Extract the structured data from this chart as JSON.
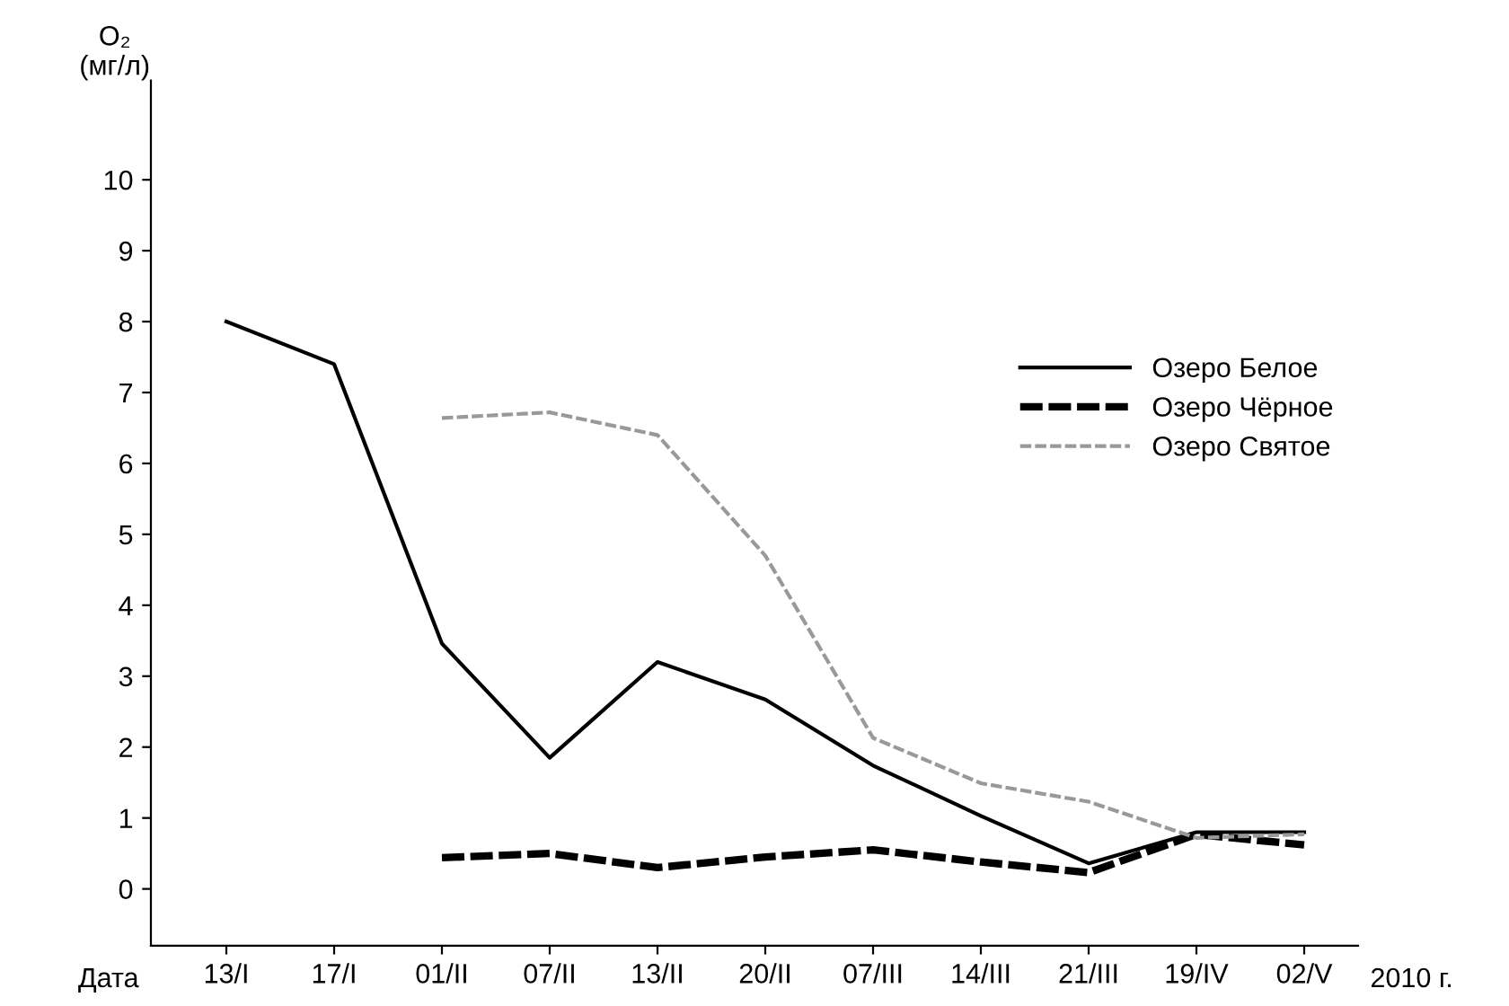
{
  "chart_data": {
    "type": "line",
    "ylabel": "O₂\n(мг/л)",
    "xlabel": "Дата",
    "annotations": [
      "2010 г."
    ],
    "categories": [
      "13/I",
      "17/I",
      "01/II",
      "07/II",
      "13/II",
      "20/II",
      "07/III",
      "14/III",
      "21/III",
      "19/IV",
      "02/V"
    ],
    "series": [
      {
        "name": "Озеро Белое",
        "color": "#000000",
        "line_style": "solid",
        "values": [
          8.0,
          7.4,
          3.46,
          1.85,
          3.2,
          2.67,
          1.74,
          1.03,
          0.36,
          0.8,
          0.8
        ]
      },
      {
        "name": "Озеро Чёрное",
        "color": "#000000",
        "line_style": "dashed",
        "values": [
          null,
          null,
          0.44,
          0.5,
          0.3,
          0.45,
          0.55,
          0.38,
          0.23,
          0.77,
          0.62
        ]
      },
      {
        "name": "Озеро Святое",
        "color": "#999999",
        "line_style": "dashed",
        "values": [
          null,
          null,
          6.64,
          6.72,
          6.4,
          4.7,
          2.13,
          1.49,
          1.23,
          0.72,
          0.77
        ]
      }
    ],
    "ylim": [
      -0.8,
      11.4
    ],
    "yticks": [
      0,
      1,
      2,
      3,
      4,
      5,
      6,
      7,
      8,
      9,
      10
    ],
    "grid": false,
    "legend": "right",
    "marker": "none"
  }
}
